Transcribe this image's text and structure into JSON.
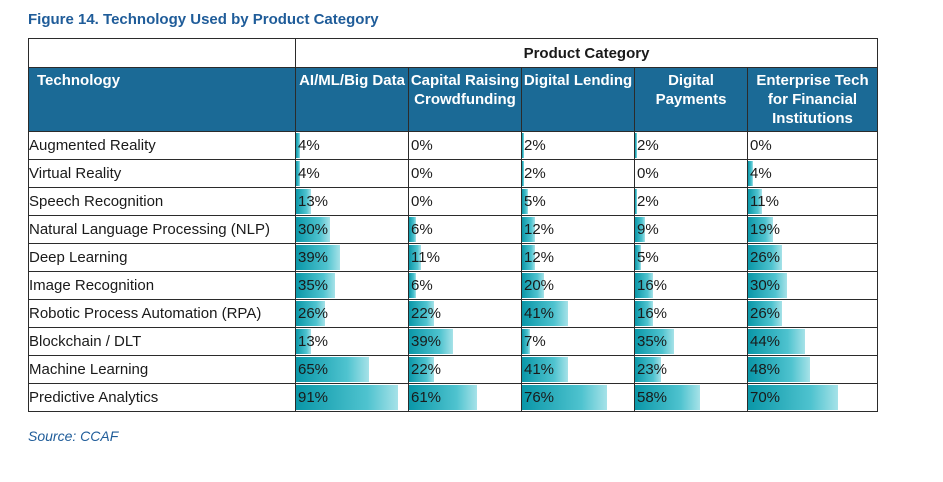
{
  "figure": {
    "title": "Figure 14. Technology Used by Product Category",
    "source": "Source: CCAF"
  },
  "colors": {
    "header_bg": "#1b6a96",
    "title_text": "#1f5c99",
    "bar_start": "#0a97a8",
    "bar_end": "#a6e2e8"
  },
  "chart_data": {
    "type": "table",
    "title": "Figure 14. Technology Used by Product Category",
    "group_header": "Product Category",
    "row_header": "Technology",
    "columns": [
      "AI/ML/Big Data",
      "Capital Raising Crowdfunding",
      "Digital Lending",
      "Digital Payments",
      "Enterprise Tech for Financial Institutions"
    ],
    "rows": [
      {
        "label": "Augmented Reality",
        "values": [
          4,
          0,
          2,
          2,
          0
        ]
      },
      {
        "label": "Virtual Reality",
        "values": [
          4,
          0,
          2,
          0,
          4
        ]
      },
      {
        "label": "Speech Recognition",
        "values": [
          13,
          0,
          5,
          2,
          11
        ]
      },
      {
        "label": "Natural Language Processing (NLP)",
        "values": [
          30,
          6,
          12,
          9,
          19
        ]
      },
      {
        "label": "Deep Learning",
        "values": [
          39,
          11,
          12,
          5,
          26
        ]
      },
      {
        "label": "Image Recognition",
        "values": [
          35,
          6,
          20,
          16,
          30
        ]
      },
      {
        "label": "Robotic Process Automation (RPA)",
        "values": [
          26,
          22,
          41,
          16,
          26
        ]
      },
      {
        "label": "Blockchain / DLT",
        "values": [
          13,
          39,
          7,
          35,
          44
        ]
      },
      {
        "label": "Machine Learning",
        "values": [
          65,
          22,
          41,
          23,
          48
        ]
      },
      {
        "label": "Predictive Analytics",
        "values": [
          91,
          61,
          76,
          58,
          70
        ]
      }
    ],
    "value_suffix": "%",
    "bar_scale_max": 100
  }
}
